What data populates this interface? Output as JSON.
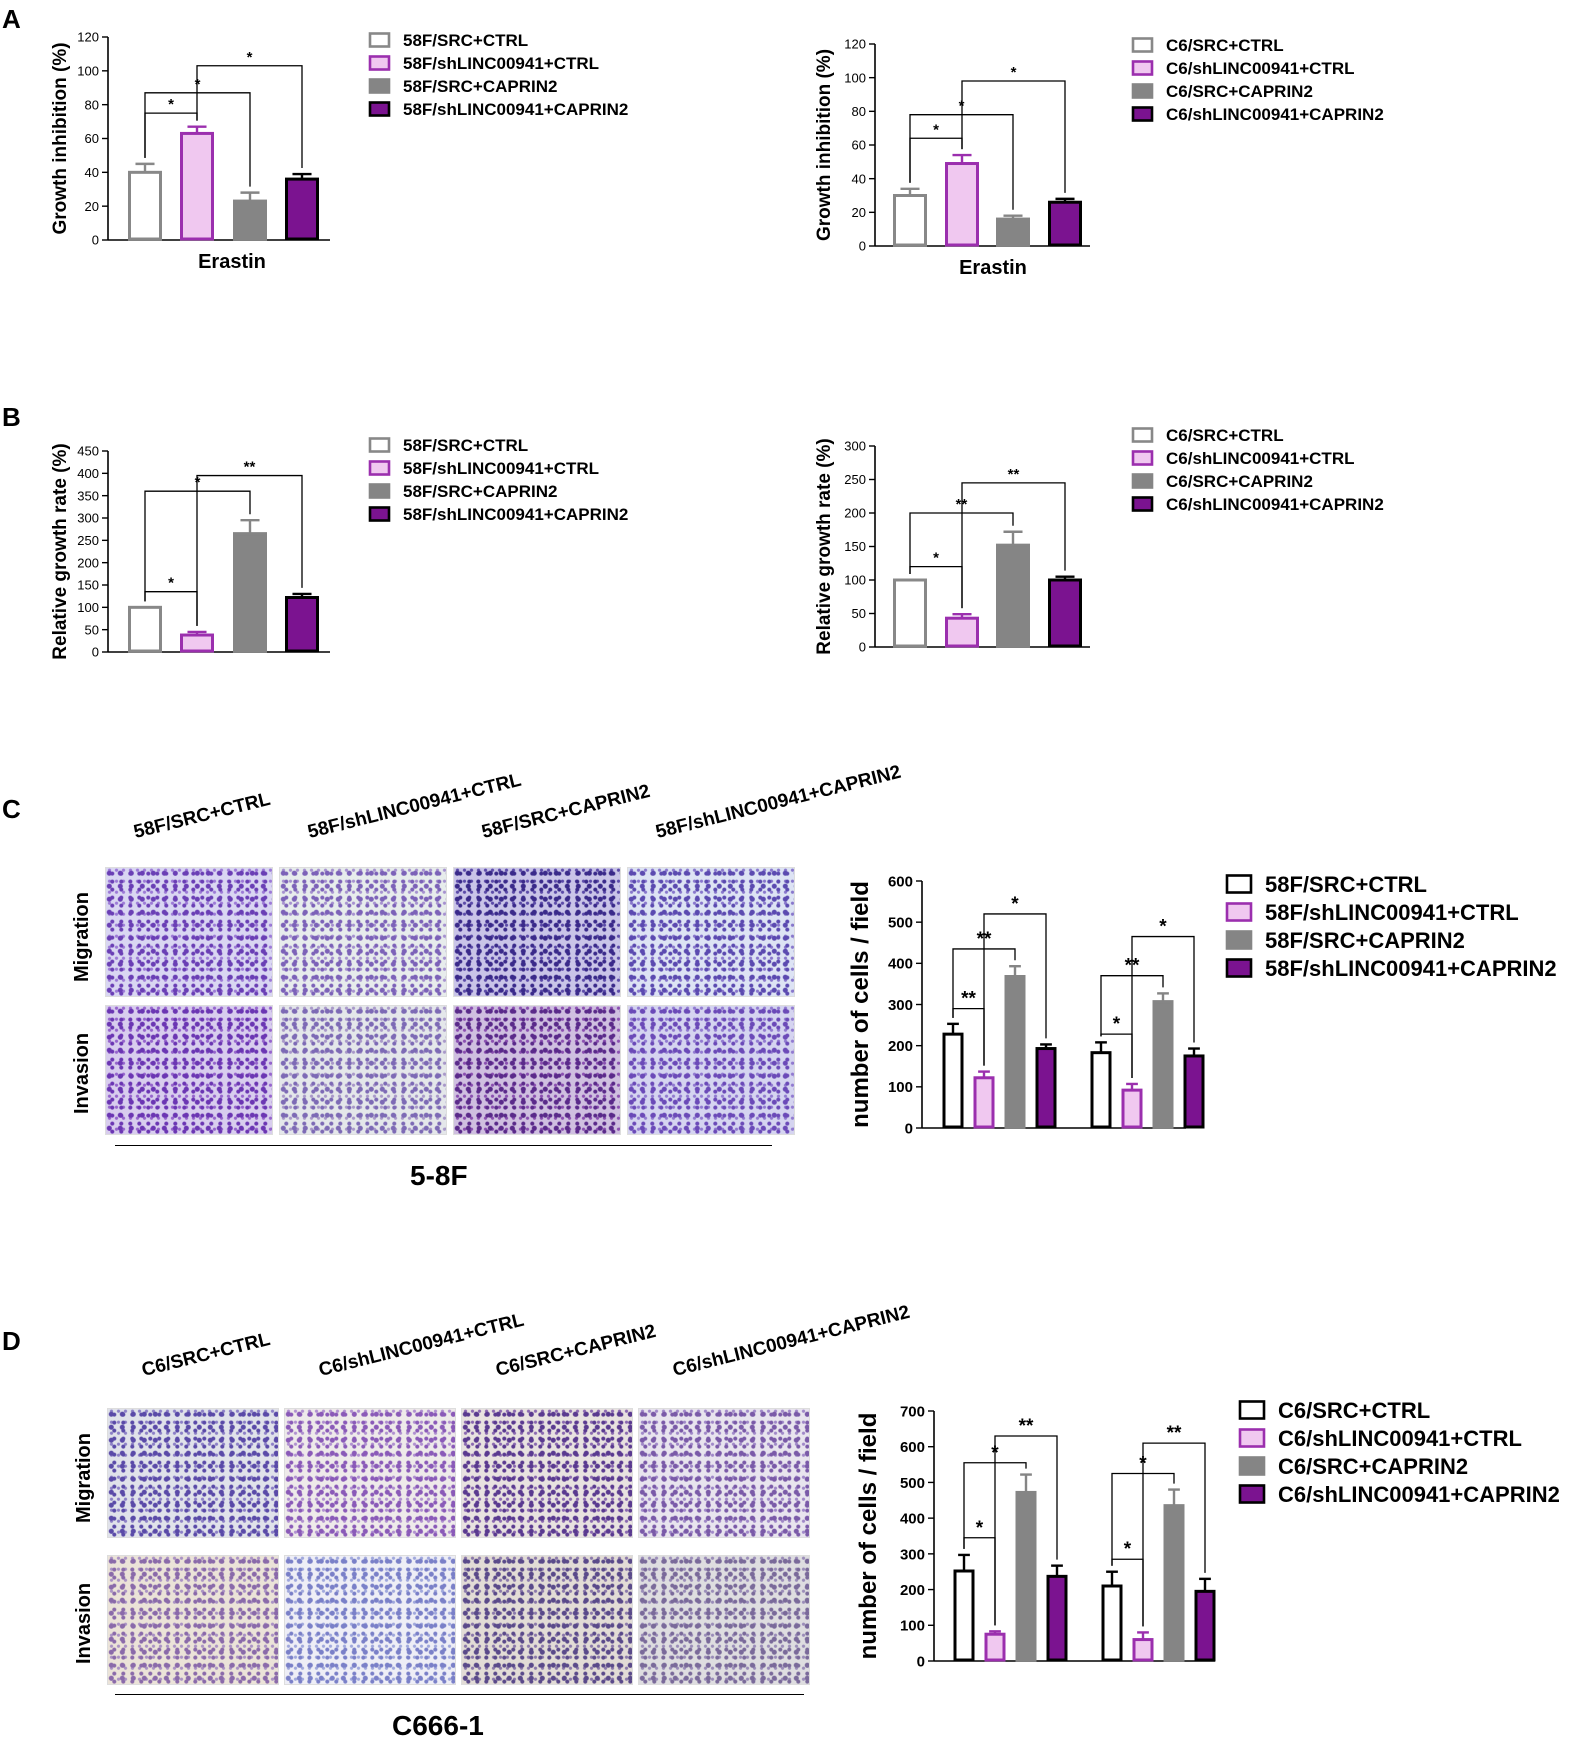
{
  "panels": {
    "A": "A",
    "B": "B",
    "C": "C",
    "D": "D"
  },
  "colors": {
    "white_bar_stroke": "#888888",
    "white_bar_stroke_black": "#000000",
    "light_purple_fill": "#f0c8f0",
    "light_purple_stroke": "#9b2fae",
    "gray": "#858585",
    "dark_purple": "#7b1390"
  },
  "chart_data": [
    {
      "id": "A-left",
      "type": "bar",
      "categories": [
        "Erastin"
      ],
      "xlabel": "Erastin",
      "ylabel": "Growth inhibition (%)",
      "ylim": [
        0,
        120
      ],
      "yticks": [
        0,
        20,
        40,
        60,
        80,
        100,
        120
      ],
      "series": [
        {
          "name": "58F/SRC+CTRL",
          "values": [
            40
          ],
          "err": [
            5
          ]
        },
        {
          "name": "58F/shLINC00941+CTRL",
          "values": [
            63
          ],
          "err": [
            4
          ]
        },
        {
          "name": "58F/SRC+CAPRIN2",
          "values": [
            23
          ],
          "err": [
            5
          ]
        },
        {
          "name": "58F/shLINC00941+CAPRIN2",
          "values": [
            36
          ],
          "err": [
            3
          ]
        }
      ],
      "significance": [
        {
          "from": 0,
          "to": 1,
          "label": "*"
        },
        {
          "from": 0,
          "to": 2,
          "label": "*"
        },
        {
          "from": 1,
          "to": 3,
          "label": "*"
        }
      ]
    },
    {
      "id": "A-right",
      "type": "bar",
      "categories": [
        "Erastin"
      ],
      "xlabel": "Erastin",
      "ylabel": "Growth inhibition (%)",
      "ylim": [
        0,
        120
      ],
      "yticks": [
        0,
        20,
        40,
        60,
        80,
        100,
        120
      ],
      "series": [
        {
          "name": "C6/SRC+CTRL",
          "values": [
            30
          ],
          "err": [
            4
          ]
        },
        {
          "name": "C6/shLINC00941+CTRL",
          "values": [
            49
          ],
          "err": [
            5
          ]
        },
        {
          "name": "C6/SRC+CAPRIN2",
          "values": [
            16
          ],
          "err": [
            2
          ]
        },
        {
          "name": "C6/shLINC00941+CAPRIN2",
          "values": [
            26
          ],
          "err": [
            2
          ]
        }
      ],
      "significance": [
        {
          "from": 0,
          "to": 1,
          "label": "*"
        },
        {
          "from": 0,
          "to": 2,
          "label": "*"
        },
        {
          "from": 1,
          "to": 3,
          "label": "*"
        }
      ]
    },
    {
      "id": "B-left",
      "type": "bar",
      "categories": [
        ""
      ],
      "xlabel": "",
      "ylabel": "Relative growth rate (%)",
      "ylim": [
        0,
        450
      ],
      "yticks": [
        0,
        50,
        100,
        150,
        200,
        250,
        300,
        350,
        400,
        450
      ],
      "series": [
        {
          "name": "58F/SRC+CTRL",
          "values": [
            100
          ],
          "err": [
            0
          ]
        },
        {
          "name": "58F/shLINC00941+CTRL",
          "values": [
            38
          ],
          "err": [
            7
          ]
        },
        {
          "name": "58F/SRC+CAPRIN2",
          "values": [
            265
          ],
          "err": [
            30
          ]
        },
        {
          "name": "58F/shLINC00941+CAPRIN2",
          "values": [
            122
          ],
          "err": [
            8
          ]
        }
      ],
      "significance": [
        {
          "from": 0,
          "to": 1,
          "label": "*"
        },
        {
          "from": 0,
          "to": 2,
          "label": "*"
        },
        {
          "from": 1,
          "to": 3,
          "label": "**"
        }
      ]
    },
    {
      "id": "B-right",
      "type": "bar",
      "categories": [
        ""
      ],
      "xlabel": "",
      "ylabel": "Relative growth rate (%)",
      "ylim": [
        0,
        300
      ],
      "yticks": [
        0,
        50,
        100,
        150,
        200,
        250,
        300
      ],
      "series": [
        {
          "name": "C6/SRC+CTRL",
          "values": [
            100
          ],
          "err": [
            0
          ]
        },
        {
          "name": "C6/shLINC00941+CTRL",
          "values": [
            43
          ],
          "err": [
            6
          ]
        },
        {
          "name": "C6/SRC+CAPRIN2",
          "values": [
            152
          ],
          "err": [
            20
          ]
        },
        {
          "name": "C6/shLINC00941+CAPRIN2",
          "values": [
            100
          ],
          "err": [
            5
          ]
        }
      ],
      "significance": [
        {
          "from": 0,
          "to": 1,
          "label": "*"
        },
        {
          "from": 0,
          "to": 2,
          "label": "**"
        },
        {
          "from": 1,
          "to": 3,
          "label": "**"
        }
      ]
    },
    {
      "id": "C-chart",
      "type": "bar",
      "categories": [
        "Migration",
        "Invasion"
      ],
      "xlabel": "",
      "ylabel": "number of cells / field",
      "ylim": [
        0,
        600
      ],
      "yticks": [
        0,
        100,
        200,
        300,
        400,
        500,
        600
      ],
      "series": [
        {
          "name": "58F/SRC+CTRL",
          "values": [
            228,
            183
          ],
          "err": [
            25,
            25
          ]
        },
        {
          "name": "58F/shLINC00941+CTRL",
          "values": [
            122,
            92
          ],
          "err": [
            15,
            15
          ]
        },
        {
          "name": "58F/SRC+CAPRIN2",
          "values": [
            368,
            307
          ],
          "err": [
            25,
            20
          ]
        },
        {
          "name": "58F/shLINC00941+CAPRIN2",
          "values": [
            193,
            175
          ],
          "err": [
            10,
            18
          ]
        }
      ],
      "significance": [
        {
          "group": 0,
          "from": 0,
          "to": 1,
          "label": "**"
        },
        {
          "group": 0,
          "from": 0,
          "to": 2,
          "label": "**"
        },
        {
          "group": 0,
          "from": 1,
          "to": 3,
          "label": "*"
        },
        {
          "group": 1,
          "from": 0,
          "to": 1,
          "label": "*"
        },
        {
          "group": 1,
          "from": 0,
          "to": 2,
          "label": "**"
        },
        {
          "group": 1,
          "from": 1,
          "to": 3,
          "label": "*"
        }
      ]
    },
    {
      "id": "D-chart",
      "type": "bar",
      "categories": [
        "Migration",
        "Invasion"
      ],
      "xlabel": "",
      "ylabel": "number of cells / field",
      "ylim": [
        0,
        700
      ],
      "yticks": [
        0,
        100,
        200,
        300,
        400,
        500,
        600,
        700
      ],
      "series": [
        {
          "name": "C6/SRC+CTRL",
          "values": [
            252,
            210
          ],
          "err": [
            45,
            40
          ]
        },
        {
          "name": "C6/shLINC00941+CTRL",
          "values": [
            75,
            60
          ],
          "err": [
            8,
            20
          ]
        },
        {
          "name": "C6/SRC+CAPRIN2",
          "values": [
            472,
            435
          ],
          "err": [
            50,
            45
          ]
        },
        {
          "name": "C6/shLINC00941+CAPRIN2",
          "values": [
            237,
            195
          ],
          "err": [
            30,
            35
          ]
        }
      ],
      "significance": [
        {
          "group": 0,
          "from": 0,
          "to": 1,
          "label": "*"
        },
        {
          "group": 0,
          "from": 0,
          "to": 2,
          "label": "*"
        },
        {
          "group": 0,
          "from": 1,
          "to": 3,
          "label": "**"
        },
        {
          "group": 1,
          "from": 0,
          "to": 1,
          "label": "*"
        },
        {
          "group": 1,
          "from": 0,
          "to": 2,
          "label": "*"
        },
        {
          "group": 1,
          "from": 1,
          "to": 3,
          "label": "**"
        }
      ]
    }
  ],
  "panel_C": {
    "columns": [
      "58F/SRC+CTRL",
      "58F/shLINC00941+CTRL",
      "58F/SRC+CAPRIN2",
      "58F/shLINC00941+CAPRIN2"
    ],
    "rows": [
      "Migration",
      "Invasion"
    ],
    "cell_line": "5-8F"
  },
  "panel_D": {
    "columns": [
      "C6/SRC+CTRL",
      "C6/shLINC00941+CTRL",
      "C6/SRC+CAPRIN2",
      "C6/shLINC00941+CAPRIN2"
    ],
    "rows": [
      "Migration",
      "Invasion"
    ],
    "cell_line": "C666-1"
  }
}
